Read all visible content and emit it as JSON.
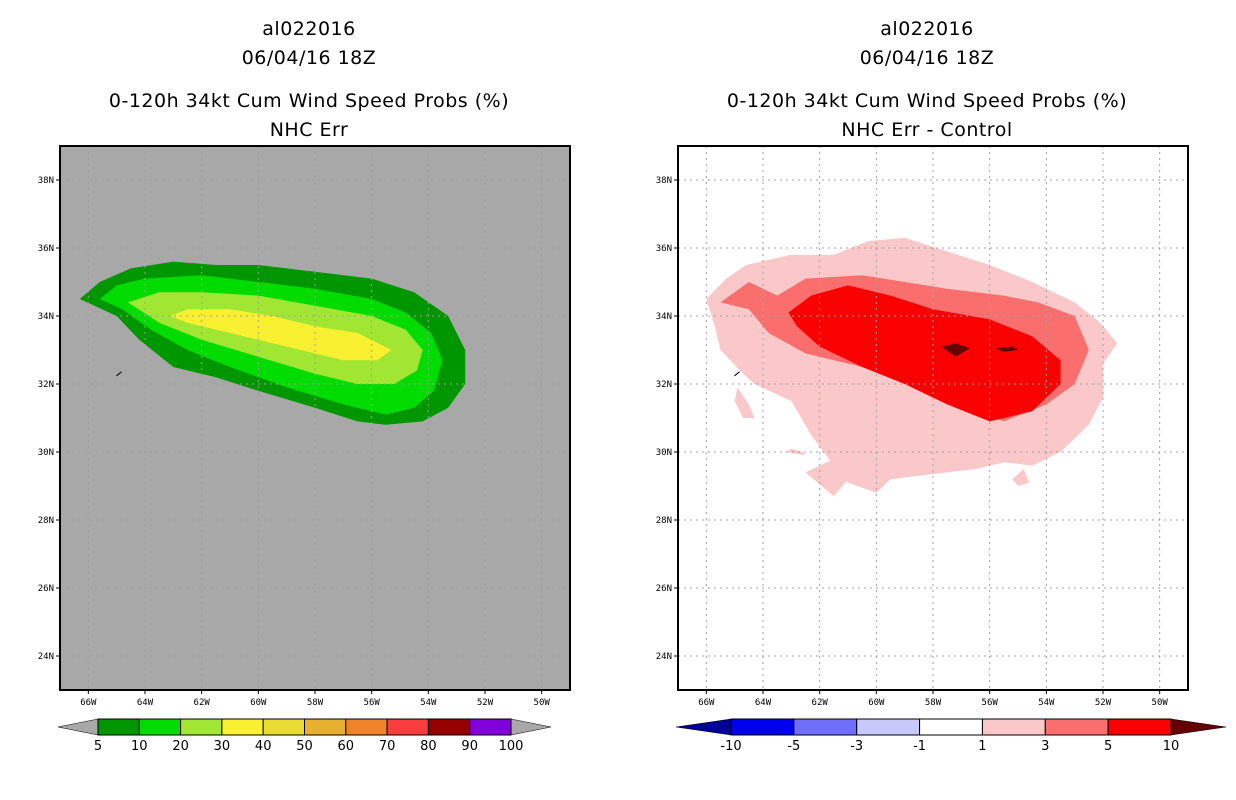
{
  "chart_data": [
    {
      "type": "heatmap",
      "subtype": "filled-contour-map",
      "title_lines": [
        "al022016",
        "06/04/16 18Z",
        "0-120h 34kt Cum Wind Speed Probs (%)",
        "NHC Err"
      ],
      "background_color": "#a8a8a8",
      "grid": true,
      "lon_range": [
        -67,
        -49
      ],
      "lat_range": [
        23,
        39
      ],
      "x_ticks": [
        {
          "value": -66,
          "label": "66W"
        },
        {
          "value": -64,
          "label": "64W"
        },
        {
          "value": -62,
          "label": "62W"
        },
        {
          "value": -60,
          "label": "60W"
        },
        {
          "value": -58,
          "label": "58W"
        },
        {
          "value": -56,
          "label": "56W"
        },
        {
          "value": -54,
          "label": "54W"
        },
        {
          "value": -52,
          "label": "52W"
        },
        {
          "value": -50,
          "label": "50W"
        }
      ],
      "y_ticks": [
        {
          "value": 38,
          "label": "38N"
        },
        {
          "value": 36,
          "label": "36N"
        },
        {
          "value": 34,
          "label": "34N"
        },
        {
          "value": 32,
          "label": "32N"
        },
        {
          "value": 30,
          "label": "30N"
        },
        {
          "value": 28,
          "label": "28N"
        },
        {
          "value": 26,
          "label": "26N"
        },
        {
          "value": 24,
          "label": "24N"
        }
      ],
      "colorbar": {
        "placement": "bottom",
        "labels": [
          "5",
          "10",
          "20",
          "30",
          "40",
          "50",
          "60",
          "70",
          "80",
          "90",
          "100"
        ],
        "colors": [
          "#009600",
          "#00dc00",
          "#a0e632",
          "#faf032",
          "#e6dc32",
          "#e6af2d",
          "#f08228",
          "#fa3c3c",
          "#960000",
          "#8200dc"
        ],
        "under_color": "#a8a8a8",
        "over_color": "#a8a8a8"
      },
      "contours": [
        {
          "level": 5,
          "color": "#009600",
          "points": [
            [
              -66.3,
              34.5
            ],
            [
              -65.6,
              35.0
            ],
            [
              -64.5,
              35.4
            ],
            [
              -63.0,
              35.6
            ],
            [
              -61.5,
              35.5
            ],
            [
              -60.0,
              35.5
            ],
            [
              -58.0,
              35.3
            ],
            [
              -56.0,
              35.1
            ],
            [
              -54.5,
              34.7
            ],
            [
              -53.3,
              34.0
            ],
            [
              -52.7,
              33.0
            ],
            [
              -52.7,
              32.0
            ],
            [
              -53.3,
              31.3
            ],
            [
              -54.2,
              30.9
            ],
            [
              -55.5,
              30.8
            ],
            [
              -56.5,
              30.9
            ],
            [
              -58.0,
              31.3
            ],
            [
              -60.0,
              31.8
            ],
            [
              -61.5,
              32.2
            ],
            [
              -63.0,
              32.5
            ],
            [
              -64.2,
              33.3
            ],
            [
              -65.0,
              34.0
            ]
          ]
        },
        {
          "level": 10,
          "color": "#00dc00",
          "points": [
            [
              -65.6,
              34.5
            ],
            [
              -65.0,
              34.9
            ],
            [
              -64.0,
              35.1
            ],
            [
              -62.0,
              35.2
            ],
            [
              -60.0,
              35.0
            ],
            [
              -58.0,
              34.8
            ],
            [
              -56.0,
              34.5
            ],
            [
              -54.8,
              34.1
            ],
            [
              -53.9,
              33.5
            ],
            [
              -53.5,
              32.7
            ],
            [
              -53.8,
              31.8
            ],
            [
              -54.5,
              31.3
            ],
            [
              -55.5,
              31.1
            ],
            [
              -57.0,
              31.4
            ],
            [
              -59.0,
              31.9
            ],
            [
              -61.0,
              32.5
            ],
            [
              -62.5,
              33.0
            ],
            [
              -63.8,
              33.6
            ],
            [
              -64.8,
              34.2
            ]
          ]
        },
        {
          "level": 20,
          "color": "#a0e632",
          "points": [
            [
              -64.6,
              34.4
            ],
            [
              -63.5,
              34.7
            ],
            [
              -62.0,
              34.7
            ],
            [
              -60.0,
              34.6
            ],
            [
              -58.0,
              34.3
            ],
            [
              -56.0,
              34.0
            ],
            [
              -54.8,
              33.6
            ],
            [
              -54.2,
              33.0
            ],
            [
              -54.4,
              32.4
            ],
            [
              -55.2,
              32.0
            ],
            [
              -56.5,
              32.0
            ],
            [
              -58.0,
              32.3
            ],
            [
              -60.0,
              32.8
            ],
            [
              -62.0,
              33.3
            ],
            [
              -63.5,
              33.8
            ]
          ]
        },
        {
          "level": 30,
          "color": "#faf032",
          "points": [
            [
              -63.1,
              34.0
            ],
            [
              -62.5,
              34.2
            ],
            [
              -61.0,
              34.2
            ],
            [
              -59.5,
              34.0
            ],
            [
              -58.0,
              33.7
            ],
            [
              -56.5,
              33.5
            ],
            [
              -55.3,
              33.0
            ],
            [
              -55.8,
              32.7
            ],
            [
              -57.0,
              32.7
            ],
            [
              -58.5,
              33.0
            ],
            [
              -60.0,
              33.3
            ],
            [
              -61.5,
              33.6
            ],
            [
              -62.5,
              33.8
            ]
          ]
        }
      ],
      "annotations": [
        {
          "type": "tick-mark",
          "lon": -64.9,
          "lat": 32.3
        }
      ]
    },
    {
      "type": "heatmap",
      "subtype": "filled-contour-map",
      "title_lines": [
        "al022016",
        "06/04/16 18Z",
        "0-120h 34kt Cum Wind Speed Probs (%)",
        "NHC Err - Control"
      ],
      "background_color": "#ffffff",
      "grid": true,
      "lon_range": [
        -67,
        -49
      ],
      "lat_range": [
        23,
        39
      ],
      "x_ticks": [
        {
          "value": -66,
          "label": "66W"
        },
        {
          "value": -64,
          "label": "64W"
        },
        {
          "value": -62,
          "label": "62W"
        },
        {
          "value": -60,
          "label": "60W"
        },
        {
          "value": -58,
          "label": "58W"
        },
        {
          "value": -56,
          "label": "56W"
        },
        {
          "value": -54,
          "label": "54W"
        },
        {
          "value": -52,
          "label": "52W"
        },
        {
          "value": -50,
          "label": "50W"
        }
      ],
      "y_ticks": [
        {
          "value": 38,
          "label": "38N"
        },
        {
          "value": 36,
          "label": "36N"
        },
        {
          "value": 34,
          "label": "34N"
        },
        {
          "value": 32,
          "label": "32N"
        },
        {
          "value": 30,
          "label": "30N"
        },
        {
          "value": 28,
          "label": "28N"
        },
        {
          "value": 26,
          "label": "26N"
        },
        {
          "value": 24,
          "label": "24N"
        }
      ],
      "colorbar": {
        "placement": "bottom",
        "labels": [
          "-10",
          "-5",
          "-3",
          "-1",
          "1",
          "3",
          "5",
          "10"
        ],
        "colors": [
          "#0000f0",
          "#6e6efa",
          "#c8c8fa",
          "#ffffff",
          "#fac8c8",
          "#fa6e6e",
          "#fa0000"
        ],
        "under_color": "#000096",
        "over_color": "#640000"
      },
      "contours": [
        {
          "level": 1,
          "color": "#fac8c8",
          "points": [
            [
              -66.0,
              34.5
            ],
            [
              -65.3,
              35.1
            ],
            [
              -64.6,
              35.5
            ],
            [
              -63.0,
              35.8
            ],
            [
              -61.5,
              35.8
            ],
            [
              -60.3,
              36.2
            ],
            [
              -59.0,
              36.3
            ],
            [
              -57.5,
              35.9
            ],
            [
              -56.0,
              35.5
            ],
            [
              -54.5,
              35.0
            ],
            [
              -53.0,
              34.4
            ],
            [
              -52.1,
              33.8
            ],
            [
              -51.5,
              33.2
            ],
            [
              -52.0,
              32.6
            ],
            [
              -52.0,
              31.6
            ],
            [
              -52.5,
              30.8
            ],
            [
              -53.5,
              30.0
            ],
            [
              -54.5,
              29.6
            ],
            [
              -55.5,
              29.7
            ],
            [
              -56.5,
              29.5
            ],
            [
              -57.5,
              29.4
            ],
            [
              -58.5,
              29.3
            ],
            [
              -59.5,
              29.2
            ],
            [
              -60.0,
              28.8
            ],
            [
              -61.0,
              29.1
            ],
            [
              -61.5,
              29.6
            ],
            [
              -62.3,
              30.5
            ],
            [
              -63.0,
              31.5
            ],
            [
              -64.3,
              32.0
            ],
            [
              -64.7,
              32.3
            ],
            [
              -65.5,
              33.0
            ],
            [
              -65.7,
              33.7
            ]
          ]
        },
        {
          "level": 3,
          "color": "#fa6e6e",
          "points": [
            [
              -65.5,
              34.4
            ],
            [
              -64.5,
              35.0
            ],
            [
              -63.5,
              34.6
            ],
            [
              -62.5,
              35.1
            ],
            [
              -60.5,
              35.2
            ],
            [
              -59.0,
              35.0
            ],
            [
              -57.5,
              34.8
            ],
            [
              -55.5,
              34.6
            ],
            [
              -54.3,
              34.4
            ],
            [
              -53.0,
              34.0
            ],
            [
              -52.5,
              33.0
            ],
            [
              -53.0,
              32.0
            ],
            [
              -54.0,
              31.4
            ],
            [
              -55.5,
              30.9
            ],
            [
              -57.0,
              31.4
            ],
            [
              -58.5,
              31.9
            ],
            [
              -60.5,
              32.5
            ],
            [
              -62.5,
              32.9
            ],
            [
              -63.8,
              33.5
            ],
            [
              -64.5,
              34.2
            ]
          ]
        },
        {
          "level": 5,
          "color": "#fa0000",
          "points": [
            [
              -63.1,
              34.1
            ],
            [
              -62.3,
              34.6
            ],
            [
              -61.0,
              34.9
            ],
            [
              -59.5,
              34.6
            ],
            [
              -58.0,
              34.2
            ],
            [
              -56.0,
              33.9
            ],
            [
              -54.5,
              33.4
            ],
            [
              -53.5,
              32.7
            ],
            [
              -53.5,
              32.0
            ],
            [
              -54.5,
              31.2
            ],
            [
              -56.0,
              30.9
            ],
            [
              -57.5,
              31.4
            ],
            [
              -59.0,
              32.0
            ],
            [
              -60.5,
              32.5
            ],
            [
              -62.0,
              33.1
            ],
            [
              -62.8,
              33.7
            ]
          ]
        },
        {
          "level": 10,
          "color": "#640000",
          "points": [
            [
              -57.7,
              33.1
            ],
            [
              -57.2,
              33.2
            ],
            [
              -56.7,
              33.05
            ],
            [
              -57.2,
              32.8
            ]
          ]
        },
        {
          "level": 10,
          "color": "#640000",
          "points": [
            [
              -55.8,
              33.05
            ],
            [
              -55.2,
              33.1
            ],
            [
              -55.0,
              33.0
            ],
            [
              -55.5,
              32.95
            ]
          ]
        },
        {
          "level": 1,
          "color": "#fac8c8",
          "points": [
            [
              -64.9,
              31.9
            ],
            [
              -64.5,
              31.4
            ],
            [
              -64.3,
              31.0
            ],
            [
              -64.7,
              31.0
            ],
            [
              -65.0,
              31.5
            ]
          ]
        },
        {
          "level": 1,
          "color": "#fac8c8",
          "points": [
            [
              -63.0,
              30.1
            ],
            [
              -62.6,
              30.0
            ],
            [
              -62.5,
              29.9
            ],
            [
              -63.2,
              30.0
            ]
          ]
        },
        {
          "level": 1,
          "color": "#fac8c8",
          "points": [
            [
              -62.5,
              29.4
            ],
            [
              -61.5,
              29.8
            ],
            [
              -61.0,
              29.2
            ],
            [
              -61.5,
              28.7
            ]
          ]
        },
        {
          "level": 1,
          "color": "#fac8c8",
          "points": [
            [
              -55.2,
              29.2
            ],
            [
              -54.8,
              29.5
            ],
            [
              -54.6,
              29.1
            ],
            [
              -55.0,
              29.0
            ]
          ]
        }
      ],
      "annotations": [
        {
          "type": "tick-mark",
          "lon": -64.9,
          "lat": 32.3
        }
      ]
    }
  ]
}
